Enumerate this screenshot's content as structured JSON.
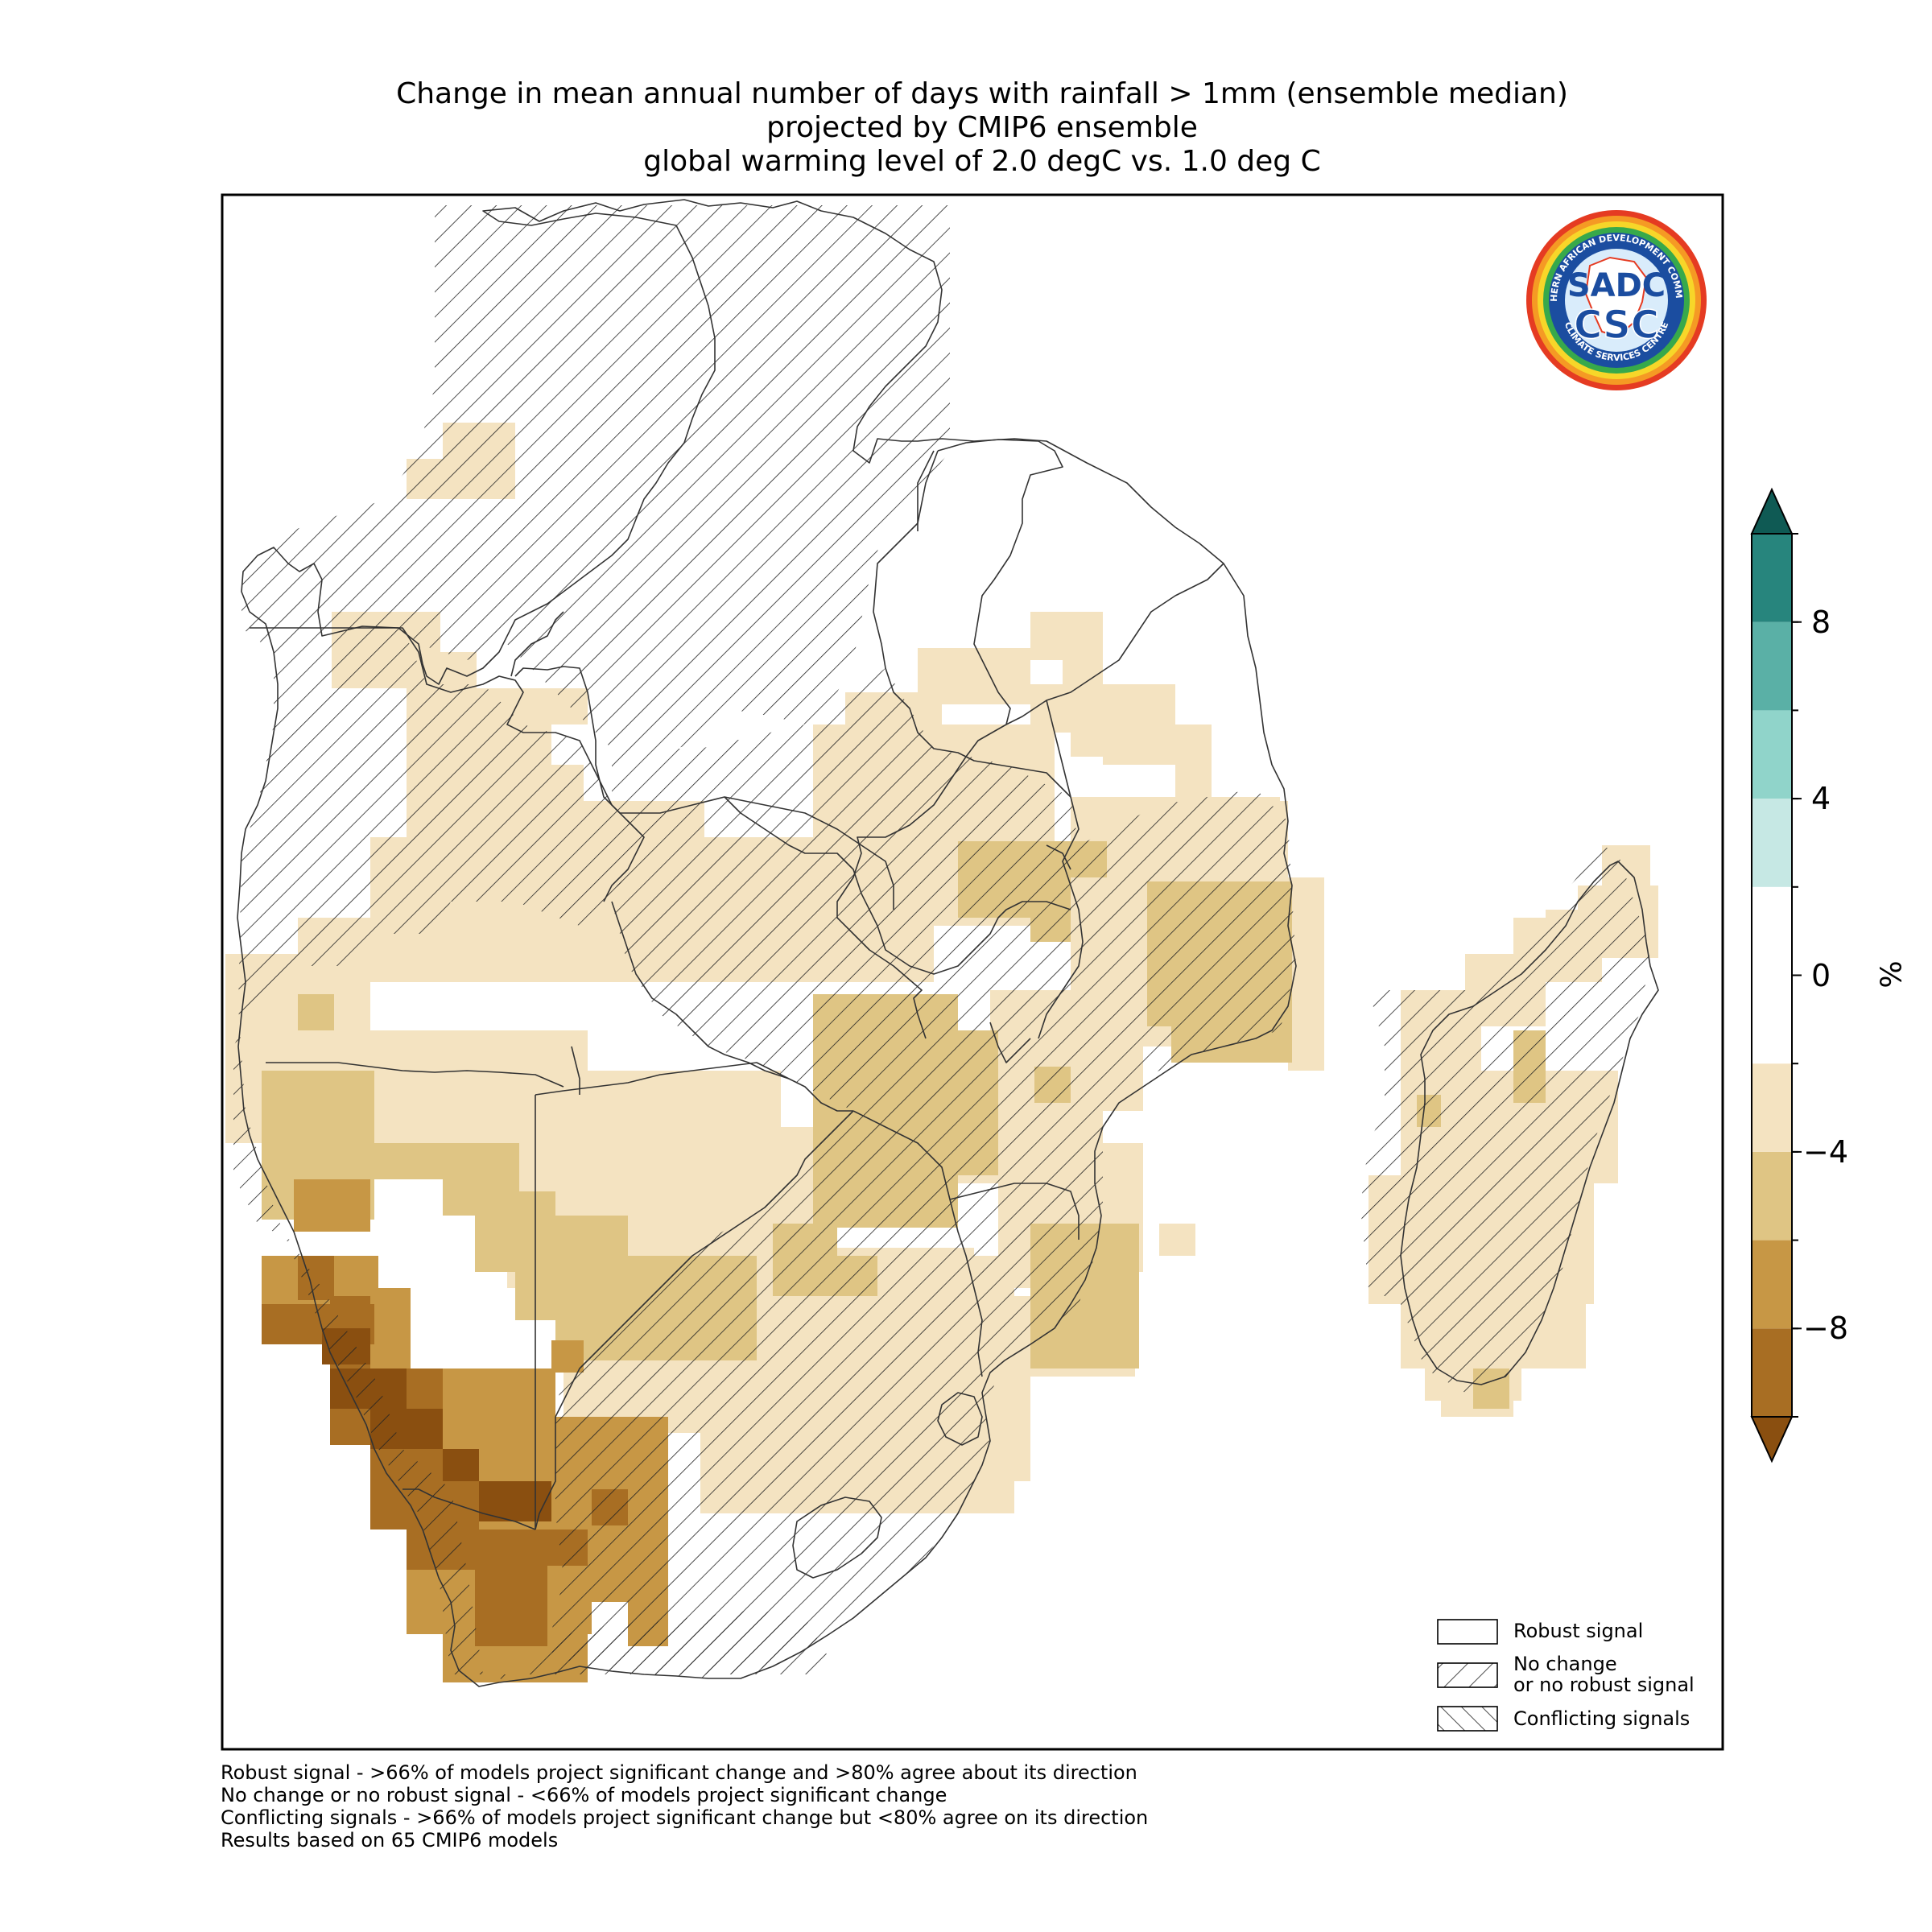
{
  "title": {
    "line1": "Change in mean annual number of days with rainfall > 1mm (ensemble median)",
    "line2": "projected by CMIP6 ensemble",
    "line3": "global warming level of 2.0 degC vs. 1.0 deg C"
  },
  "logo": {
    "ring_text_top": "SOUTHERN AFRICAN DEVELOPMENT COMMUNITY",
    "ring_text_bottom": "CLIMATE SERVICES CENTRE",
    "text_sadc": "SADC",
    "text_csc": "CSC"
  },
  "legend": {
    "items": [
      {
        "id": "robust",
        "label_line1": "Robust signal",
        "label_line2": ""
      },
      {
        "id": "nochange",
        "label_line1": "No change",
        "label_line2": "or no robust signal"
      },
      {
        "id": "conflicting",
        "label_line1": "Conflicting signals",
        "label_line2": ""
      }
    ]
  },
  "colorbar": {
    "unit": "%",
    "min": -10,
    "max": 10,
    "boundaries": [
      -10,
      -8,
      -6,
      -4,
      -2,
      2,
      4,
      6,
      8,
      10
    ],
    "colors": [
      "#a86e23",
      "#c79745",
      "#dfc584",
      "#f4e3c1",
      "#ffffff",
      "#c6e8e4",
      "#90d4ca",
      "#5ab0a6",
      "#27857d"
    ],
    "under_color": "#8a4f10",
    "over_color": "#0f5a54",
    "ticks": [
      {
        "value": 8,
        "label": "8"
      },
      {
        "value": 4,
        "label": "4"
      },
      {
        "value": 0,
        "label": "0"
      },
      {
        "value": -4,
        "label": "−4"
      },
      {
        "value": -8,
        "label": "−8"
      }
    ]
  },
  "footnotes": [
    "Robust signal - >66% of models project significant change and >80% agree about its direction",
    "No change or no robust signal - <66% of models project significant change",
    "Conflicting signals - >66% of models project significant change but <80% agree on its direction",
    "Results based on 65 CMIP6 models"
  ],
  "map": {
    "palette": {
      "p1": "#f4e3c1",
      "p2": "#dfc584",
      "p3": "#c79745",
      "p4": "#a86e23",
      "p5": "#8a4f10"
    },
    "regions_hatched": [
      "mainland-north",
      "mainland-centre",
      "madagascar"
    ],
    "regions_robust": [
      "drc-northeast",
      "kenya-coast",
      "southeast-coast"
    ]
  }
}
